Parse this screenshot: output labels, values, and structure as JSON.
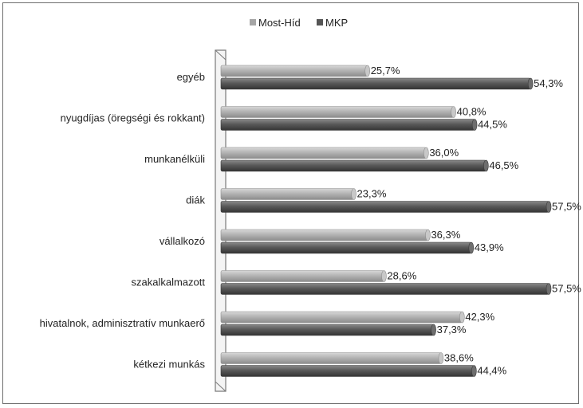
{
  "chart_data": {
    "type": "bar",
    "orientation": "horizontal",
    "categories": [
      "egyéb",
      "nyugdíjas (öregségi és rokkant)",
      "munkanélküli",
      "diák",
      "vállalkozó",
      "szakalkalmazott",
      "hivatalnok, adminisztratív munkaerő",
      "kétkezi munkás"
    ],
    "series": [
      {
        "name": "Most-Híd",
        "color": "#a6a6a6",
        "values": [
          25.7,
          40.8,
          36.0,
          23.3,
          36.3,
          28.6,
          42.3,
          38.6
        ],
        "labels": [
          "25,7%",
          "40,8%",
          "36,0%",
          "23,3%",
          "36,3%",
          "28,6%",
          "42,3%",
          "38,6%"
        ]
      },
      {
        "name": "MKP",
        "color": "#555555",
        "values": [
          54.3,
          44.5,
          46.5,
          57.5,
          43.9,
          57.5,
          37.3,
          44.4
        ],
        "labels": [
          "54,3%",
          "44,5%",
          "46,5%",
          "57,5%",
          "43,9%",
          "57,5%",
          "37,3%",
          "44,4%"
        ]
      }
    ],
    "xlim": [
      0,
      57.5
    ],
    "legend_position": "top-center",
    "grid": false
  }
}
